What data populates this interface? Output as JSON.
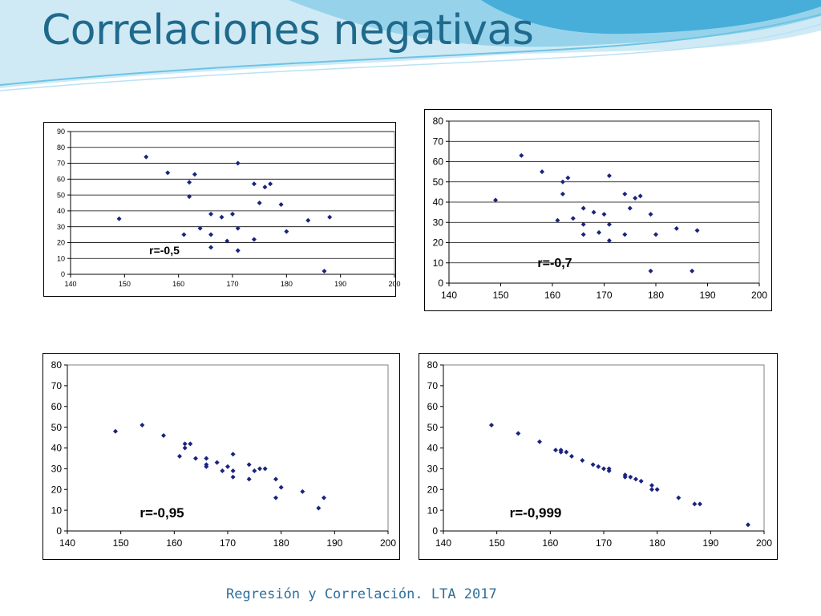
{
  "slide": {
    "title": "Correlaciones negativas",
    "footer": "Regresión y Correlación. LTA 2017"
  },
  "colors": {
    "title": "#1f6a8c",
    "marker": "#1a237e",
    "frame": "#000000"
  },
  "chart_data": [
    {
      "type": "scatter",
      "annotation": "r=-0,5",
      "xlabel": "",
      "ylabel": "",
      "xlim": [
        140,
        200
      ],
      "ylim": [
        0,
        90
      ],
      "xticks": [
        140,
        150,
        160,
        170,
        180,
        190,
        200
      ],
      "yticks": [
        0,
        10,
        20,
        30,
        40,
        50,
        60,
        70,
        80,
        90
      ],
      "grid": "horizontal",
      "points": [
        [
          149,
          35
        ],
        [
          154,
          74
        ],
        [
          158,
          64
        ],
        [
          161,
          25
        ],
        [
          162,
          58
        ],
        [
          162,
          49
        ],
        [
          163,
          63
        ],
        [
          164,
          29
        ],
        [
          166,
          38
        ],
        [
          166,
          25
        ],
        [
          166,
          17
        ],
        [
          168,
          36
        ],
        [
          169,
          21
        ],
        [
          170,
          38
        ],
        [
          171,
          70
        ],
        [
          171,
          29
        ],
        [
          171,
          15
        ],
        [
          174,
          57
        ],
        [
          174,
          22
        ],
        [
          175,
          45
        ],
        [
          176,
          55
        ],
        [
          177,
          57
        ],
        [
          179,
          44
        ],
        [
          180,
          27
        ],
        [
          184,
          34
        ],
        [
          187,
          2
        ],
        [
          188,
          36
        ]
      ]
    },
    {
      "type": "scatter",
      "annotation": "r=-0,7",
      "xlabel": "",
      "ylabel": "",
      "xlim": [
        140,
        200
      ],
      "ylim": [
        0,
        80
      ],
      "xticks": [
        140,
        150,
        160,
        170,
        180,
        190,
        200
      ],
      "yticks": [
        0,
        10,
        20,
        30,
        40,
        50,
        60,
        70,
        80
      ],
      "grid": "horizontal",
      "points": [
        [
          149,
          41
        ],
        [
          154,
          63
        ],
        [
          158,
          55
        ],
        [
          161,
          31
        ],
        [
          162,
          50
        ],
        [
          162,
          44
        ],
        [
          163,
          52
        ],
        [
          164,
          32
        ],
        [
          166,
          37
        ],
        [
          166,
          29
        ],
        [
          166,
          24
        ],
        [
          168,
          35
        ],
        [
          169,
          25
        ],
        [
          170,
          34
        ],
        [
          171,
          53
        ],
        [
          171,
          29
        ],
        [
          171,
          21
        ],
        [
          174,
          44
        ],
        [
          174,
          24
        ],
        [
          175,
          37
        ],
        [
          176,
          42
        ],
        [
          177,
          43
        ],
        [
          179,
          34
        ],
        [
          179,
          6
        ],
        [
          180,
          24
        ],
        [
          184,
          27
        ],
        [
          187,
          6
        ],
        [
          188,
          26
        ]
      ]
    },
    {
      "type": "scatter",
      "annotation": "r=-0,95",
      "xlabel": "",
      "ylabel": "",
      "xlim": [
        140,
        200
      ],
      "ylim": [
        0,
        80
      ],
      "xticks": [
        140,
        150,
        160,
        170,
        180,
        190,
        200
      ],
      "yticks": [
        0,
        10,
        20,
        30,
        40,
        50,
        60,
        70,
        80
      ],
      "grid": "none",
      "points": [
        [
          149,
          48
        ],
        [
          154,
          51
        ],
        [
          158,
          46
        ],
        [
          161,
          36
        ],
        [
          162,
          42
        ],
        [
          162,
          40
        ],
        [
          163,
          42
        ],
        [
          164,
          35
        ],
        [
          166,
          35
        ],
        [
          166,
          32
        ],
        [
          166,
          31
        ],
        [
          168,
          33
        ],
        [
          169,
          29
        ],
        [
          170,
          31
        ],
        [
          171,
          37
        ],
        [
          171,
          29
        ],
        [
          171,
          26
        ],
        [
          174,
          32
        ],
        [
          174,
          25
        ],
        [
          175,
          29
        ],
        [
          176,
          30
        ],
        [
          177,
          30
        ],
        [
          179,
          25
        ],
        [
          179,
          16
        ],
        [
          180,
          21
        ],
        [
          184,
          19
        ],
        [
          187,
          11
        ],
        [
          188,
          16
        ]
      ]
    },
    {
      "type": "scatter",
      "annotation": "r=-0,999",
      "xlabel": "",
      "ylabel": "",
      "xlim": [
        140,
        200
      ],
      "ylim": [
        0,
        80
      ],
      "xticks": [
        140,
        150,
        160,
        170,
        180,
        190,
        200
      ],
      "yticks": [
        0,
        10,
        20,
        30,
        40,
        50,
        60,
        70,
        80
      ],
      "grid": "none",
      "points": [
        [
          149,
          51
        ],
        [
          154,
          47
        ],
        [
          158,
          43
        ],
        [
          161,
          39
        ],
        [
          162,
          39
        ],
        [
          162,
          38
        ],
        [
          163,
          38
        ],
        [
          164,
          36
        ],
        [
          166,
          34
        ],
        [
          168,
          32
        ],
        [
          169,
          31
        ],
        [
          170,
          30
        ],
        [
          171,
          30
        ],
        [
          171,
          29
        ],
        [
          174,
          27
        ],
        [
          174,
          26
        ],
        [
          175,
          26
        ],
        [
          176,
          25
        ],
        [
          177,
          24
        ],
        [
          179,
          22
        ],
        [
          179,
          20
        ],
        [
          180,
          20
        ],
        [
          184,
          16
        ],
        [
          187,
          13
        ],
        [
          188,
          13
        ],
        [
          197,
          3
        ]
      ]
    }
  ]
}
